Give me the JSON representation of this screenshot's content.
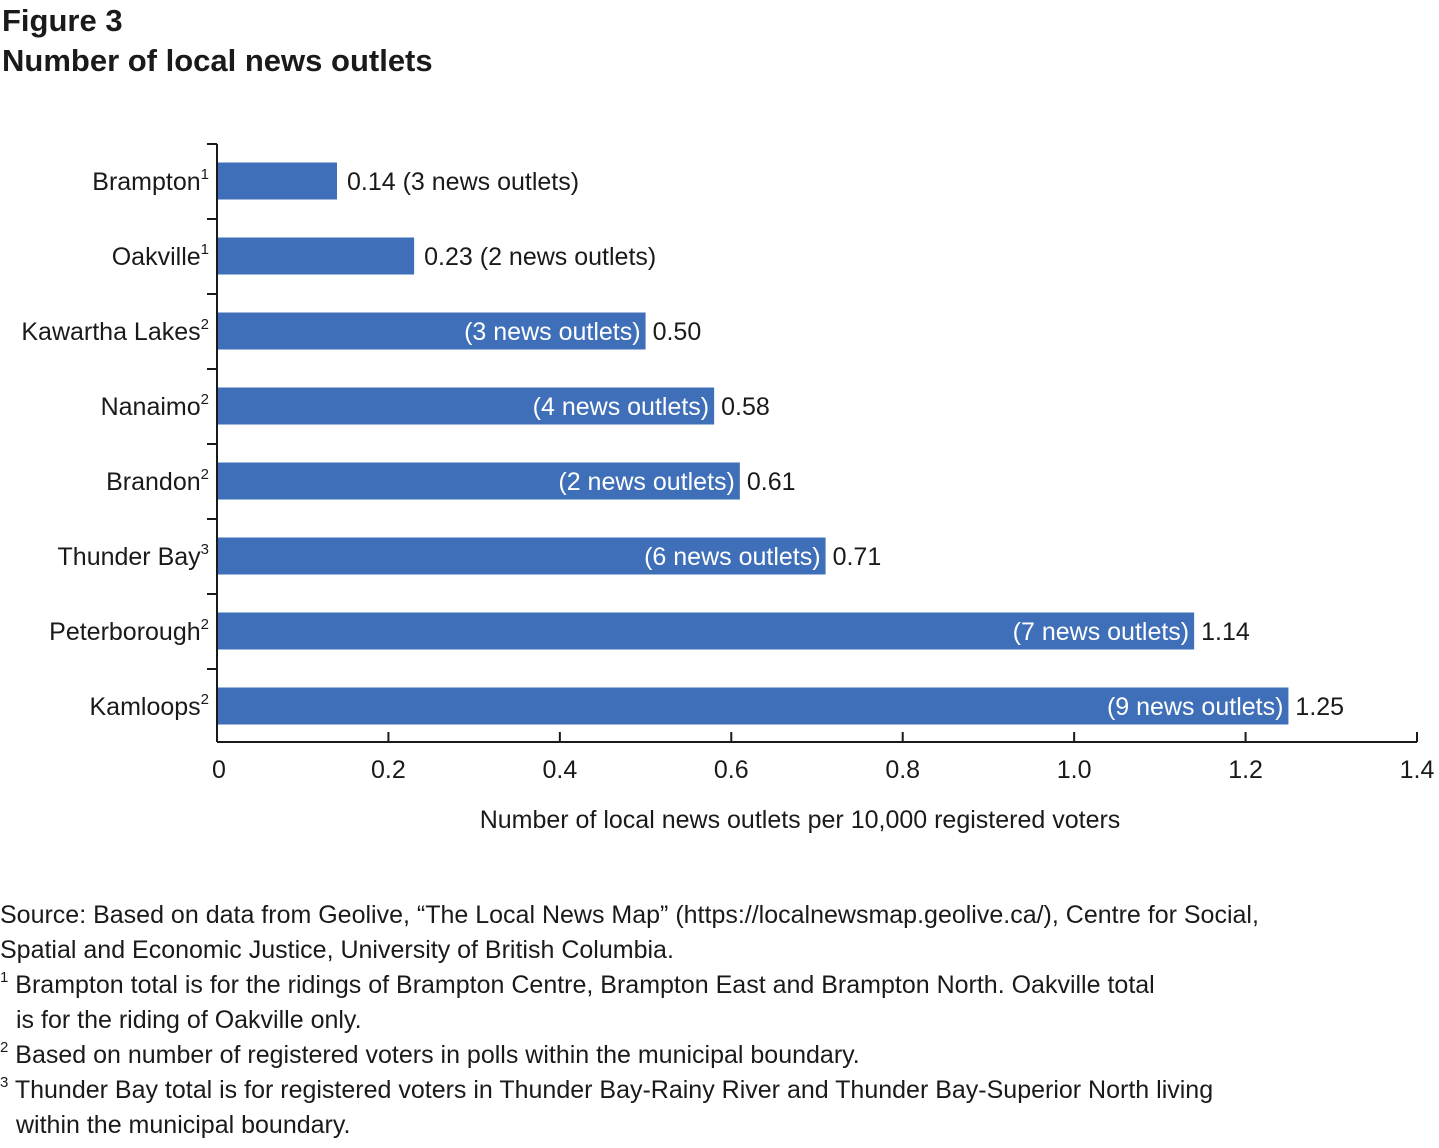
{
  "figure_label": "Figure 3",
  "figure_title": "Number of local news outlets",
  "chart_data": {
    "type": "bar",
    "orientation": "horizontal",
    "xlabel": "Number of local news outlets per 10,000 registered voters",
    "xlim": [
      0,
      1.4
    ],
    "xticks": [
      "0",
      "0.2",
      "0.4",
      "0.6",
      "0.8",
      "1.0",
      "1.2",
      "1.4"
    ],
    "bar_color": "#3f6fb8",
    "categories": [
      {
        "name": "Brampton",
        "note": "1",
        "value": 0.14,
        "value_label": "0.14",
        "outlets_label": "(3 news outlets)",
        "outlets_inside": false
      },
      {
        "name": "Oakville",
        "note": "1",
        "value": 0.23,
        "value_label": "0.23",
        "outlets_label": "(2 news outlets)",
        "outlets_inside": false
      },
      {
        "name": "Kawartha Lakes",
        "note": "2",
        "value": 0.5,
        "value_label": "0.50",
        "outlets_label": "(3 news outlets)",
        "outlets_inside": true
      },
      {
        "name": "Nanaimo",
        "note": "2",
        "value": 0.58,
        "value_label": "0.58",
        "outlets_label": "(4 news outlets)",
        "outlets_inside": true
      },
      {
        "name": "Brandon",
        "note": "2",
        "value": 0.61,
        "value_label": "0.61",
        "outlets_label": "(2 news outlets)",
        "outlets_inside": true
      },
      {
        "name": "Thunder Bay",
        "note": "3",
        "value": 0.71,
        "value_label": "0.71",
        "outlets_label": "(6 news outlets)",
        "outlets_inside": true
      },
      {
        "name": "Peterborough",
        "note": "2",
        "value": 1.14,
        "value_label": "1.14",
        "outlets_label": "(7 news outlets)",
        "outlets_inside": true
      },
      {
        "name": "Kamloops",
        "note": "2",
        "value": 1.25,
        "value_label": "1.25",
        "outlets_label": "(9 news outlets)",
        "outlets_inside": true
      }
    ]
  },
  "notes": {
    "source_line1": "Source: Based on data from Geolive, “The Local News Map” (https://localnewsmap.geolive.ca/), Centre for Social,",
    "source_line2": "Spatial and Economic Justice, University of British Columbia.",
    "note1_mark": "1",
    "note1_line1": " Brampton total is for the ridings of Brampton Centre, Brampton East and Brampton North. Oakville total",
    "note1_line2": "is for the riding of Oakville only.",
    "note2_mark": "2",
    "note2_line1": " Based on number of registered voters in polls within the municipal boundary.",
    "note3_mark": "3",
    "note3_line1": " Thunder Bay total  is for registered voters in Thunder Bay-Rainy River and Thunder Bay-Superior North living",
    "note3_line2": "within the municipal boundary."
  }
}
